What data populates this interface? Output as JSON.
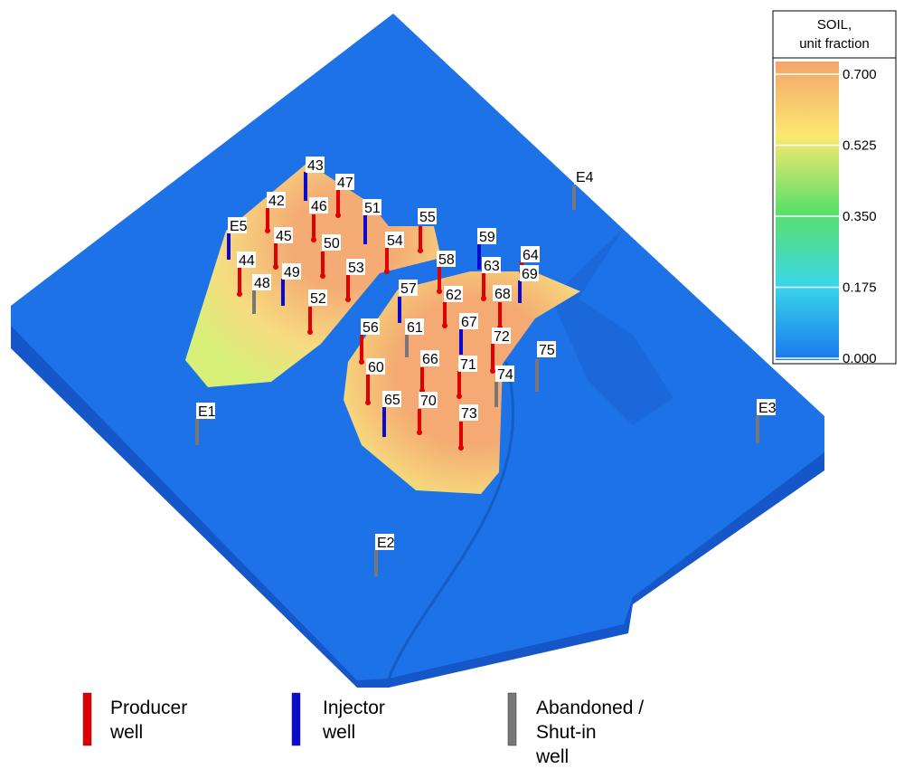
{
  "colorbar": {
    "title": [
      "SOIL,",
      "unit fraction"
    ],
    "ticks": [
      "0.700",
      "0.525",
      "0.350",
      "0.175",
      "0.000"
    ]
  },
  "legend": [
    {
      "label": [
        "Producer",
        "well"
      ],
      "color": "#e00000",
      "wells": [
        "42",
        "47",
        "46",
        "55",
        "45",
        "50",
        "54",
        "64",
        "44",
        "53",
        "58",
        "63",
        "62",
        "68",
        "52",
        "56",
        "72",
        "66",
        "60",
        "71",
        "70",
        "73"
      ]
    },
    {
      "label": [
        "Injector",
        "well"
      ],
      "color": "#0a0ad0",
      "wells": [
        "43",
        "51",
        "E5",
        "59",
        "49",
        "69",
        "57",
        "67",
        "65"
      ]
    },
    {
      "label": [
        "Abandoned /",
        "Shut-in",
        "well"
      ],
      "color": "#777777",
      "wells": [
        "48",
        "61",
        "75",
        "74",
        "E1",
        "E4",
        "E3",
        "E2"
      ]
    }
  ]
}
